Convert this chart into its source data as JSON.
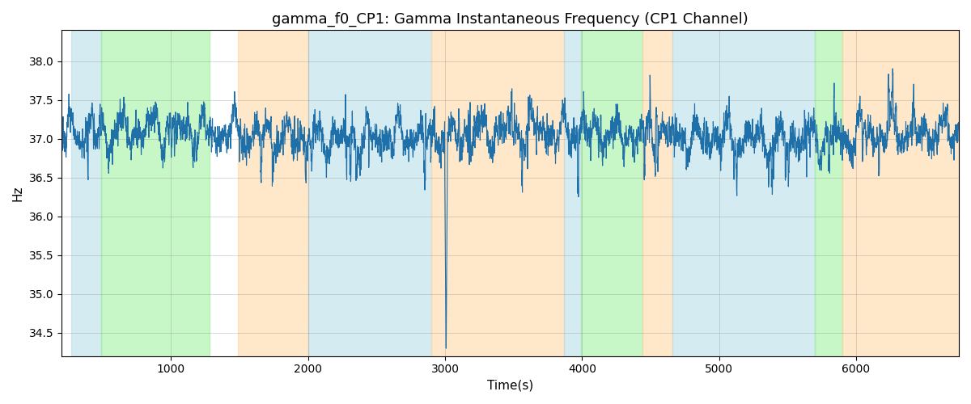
{
  "title": "gamma_f0_CP1: Gamma Instantaneous Frequency (CP1 Channel)",
  "xlabel": "Time(s)",
  "ylabel": "Hz",
  "line_color": "#1f6fa8",
  "line_width": 0.8,
  "background_color": "#ffffff",
  "ylim": [
    34.2,
    38.4
  ],
  "xlim": [
    200,
    6750
  ],
  "yticks": [
    34.5,
    35.0,
    35.5,
    36.0,
    36.5,
    37.0,
    37.5,
    38.0
  ],
  "xticks": [
    1000,
    2000,
    3000,
    4000,
    5000,
    6000
  ],
  "colored_regions": [
    {
      "xmin": 270,
      "xmax": 490,
      "color": "#add8e6",
      "alpha": 0.5
    },
    {
      "xmin": 490,
      "xmax": 1280,
      "color": "#90ee90",
      "alpha": 0.5
    },
    {
      "xmin": 1490,
      "xmax": 2000,
      "color": "#ffd59f",
      "alpha": 0.55
    },
    {
      "xmin": 2000,
      "xmax": 2900,
      "color": "#add8e6",
      "alpha": 0.5
    },
    {
      "xmin": 2900,
      "xmax": 3870,
      "color": "#ffd59f",
      "alpha": 0.55
    },
    {
      "xmin": 3870,
      "xmax": 3990,
      "color": "#add8e6",
      "alpha": 0.5
    },
    {
      "xmin": 3990,
      "xmax": 4440,
      "color": "#90ee90",
      "alpha": 0.5
    },
    {
      "xmin": 4440,
      "xmax": 4660,
      "color": "#ffd59f",
      "alpha": 0.55
    },
    {
      "xmin": 4660,
      "xmax": 5700,
      "color": "#add8e6",
      "alpha": 0.5
    },
    {
      "xmin": 5700,
      "xmax": 5900,
      "color": "#90ee90",
      "alpha": 0.5
    },
    {
      "xmin": 5900,
      "xmax": 6750,
      "color": "#ffd59f",
      "alpha": 0.55
    }
  ],
  "seed": 42,
  "n_points": 6700,
  "mean_freq": 37.05,
  "noise_std": 0.18,
  "smooth_window": 3
}
